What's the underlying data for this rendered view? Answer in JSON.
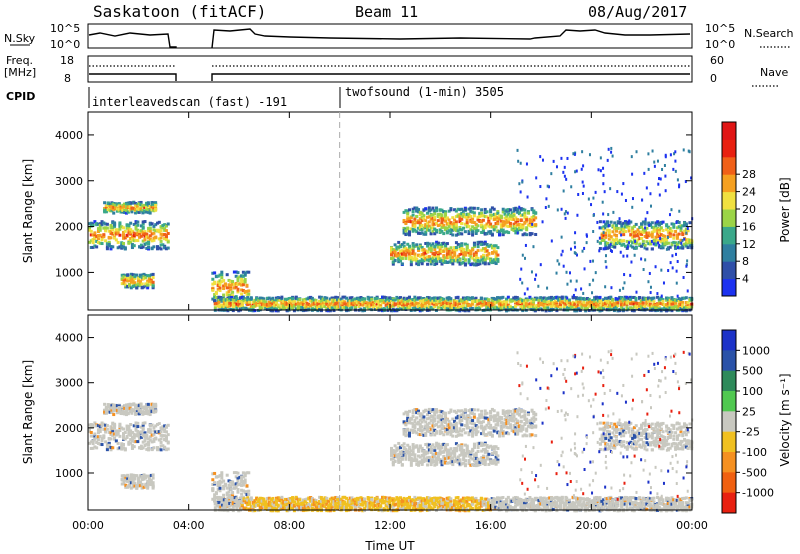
{
  "header": {
    "title": "Saskatoon (fitACF)",
    "beam": "Beam 11",
    "date": "08/Aug/2017"
  },
  "top_panels": {
    "nsky_label": "N.Sky",
    "noise_ticks": [
      "10^5",
      "10^0"
    ],
    "nsearch_label": "N.Search",
    "freq_label": "Freq.",
    "freq_unit": "[MHz]",
    "freq_ticks": [
      "18",
      "8"
    ],
    "nave_label": "Nave",
    "nave_ticks": [
      "60",
      "0"
    ],
    "cpid_label": "CPID",
    "cpid_segments": [
      "interleavedscan (fast) -191",
      "twofsound (1-min) 3505"
    ]
  },
  "chart_data": [
    {
      "type": "heatmap",
      "parameter": "Power",
      "ylabel": "Slant Range [km]",
      "ylim": [
        180,
        4500
      ],
      "y_ticks": [
        "1000",
        "2000",
        "3000",
        "4000"
      ],
      "colorbar_label": "Power [dB]",
      "colorbar_ticks": [
        "4",
        "8",
        "12",
        "16",
        "20",
        "24",
        "28"
      ],
      "colorbar_colors": [
        "#1c32f0",
        "#2f4fa8",
        "#2f7fa0",
        "#3aa88a",
        "#9bd447",
        "#f0e040",
        "#f5a020",
        "#f06018",
        "#e82010",
        "#e01515"
      ],
      "echo_regions": [
        {
          "t_start": 0.0,
          "t_end": 3.2,
          "r_center": 1800,
          "r_width": 300
        },
        {
          "t_start": 0.6,
          "t_end": 2.7,
          "r_center": 2400,
          "r_width": 120
        },
        {
          "t_start": 1.3,
          "t_end": 2.6,
          "r_center": 800,
          "r_width": 150
        },
        {
          "t_start": 4.9,
          "t_end": 6.4,
          "r_center": 650,
          "r_width": 350
        },
        {
          "t_start": 5.0,
          "t_end": 24.0,
          "r_center": 300,
          "r_width": 150
        },
        {
          "t_start": 12.5,
          "t_end": 17.8,
          "r_center": 2100,
          "r_width": 300
        },
        {
          "t_start": 12.0,
          "t_end": 16.3,
          "r_center": 1400,
          "r_width": 250
        },
        {
          "t_start": 20.3,
          "t_end": 24.0,
          "r_center": 1800,
          "r_width": 300
        }
      ]
    },
    {
      "type": "heatmap",
      "parameter": "Velocity",
      "ylabel": "Slant Range [km]",
      "ylim": [
        180,
        4500
      ],
      "y_ticks": [
        "1000",
        "2000",
        "3000",
        "4000"
      ],
      "xlabel": "Time UT",
      "x_ticks": [
        "00:00",
        "04:00",
        "08:00",
        "12:00",
        "16:00",
        "20:00",
        "00:00"
      ],
      "xlim": [
        0,
        24
      ],
      "colorbar_label": "Velocity [m s⁻¹]",
      "colorbar_ticks": [
        "1000",
        "500",
        "100",
        "25",
        "-25",
        "-100",
        "-500",
        "-1000"
      ],
      "colorbar_colors": [
        "#1c32c8",
        "#2a52a8",
        "#2e8a5a",
        "#50c850",
        "#c8c8c0",
        "#f0c020",
        "#f59020",
        "#f06010",
        "#e82010"
      ],
      "gate_marker_time": 10.0
    }
  ]
}
